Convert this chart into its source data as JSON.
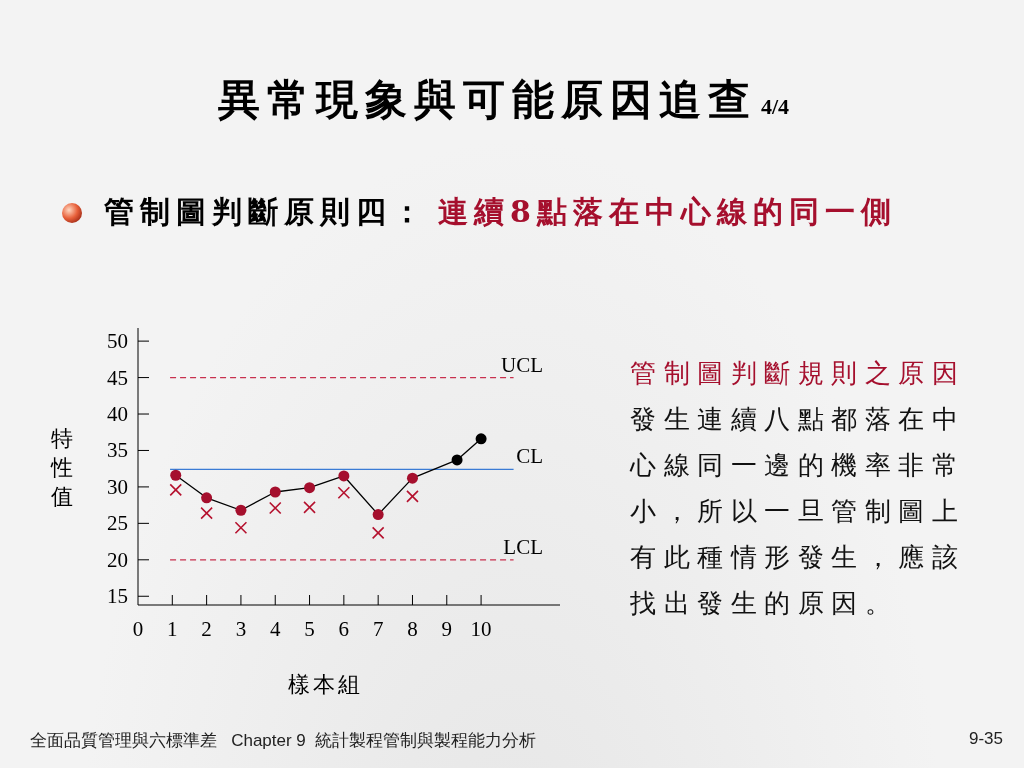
{
  "chart_data": {
    "type": "line",
    "title": "異常現象與可能原因追查",
    "subtitle": "管制圖判斷原則四：",
    "xlabel": "樣本組",
    "ylabel": "特性值",
    "series": [
      {
        "type": "line",
        "x": [
          1.1,
          2,
          3,
          4,
          5,
          6,
          7,
          8,
          9.3,
          10
        ],
        "values": [
          31.6,
          28.5,
          26.8,
          29.3,
          29.9,
          31.5,
          26.2,
          31.2,
          33.7,
          36.6
        ],
        "color": "#000000",
        "colors": [
          "#a50f2d",
          "#a50f2d",
          "#a50f2d",
          "#a50f2d",
          "#a50f2d",
          "#a50f2d",
          "#a50f2d",
          "#a50f2d",
          "#000000",
          "#000000"
        ],
        "marker": "circle",
        "line_style": "solid"
      },
      {
        "type": "scatter",
        "x": [
          1.1,
          2,
          3,
          4,
          5,
          6,
          7,
          8
        ],
        "values": [
          29.6,
          26.4,
          24.4,
          27.1,
          27.2,
          29.2,
          23.7,
          28.7
        ],
        "color": "#b5112e",
        "marker": "cross"
      }
    ],
    "xlim": [
      0,
      12.3
    ],
    "xticks": [
      0,
      1,
      2,
      3,
      4,
      5,
      6,
      7,
      8,
      9,
      10
    ],
    "ylim": [
      13.8,
      51.8
    ],
    "yticks": [
      15,
      20,
      25,
      30,
      35,
      40,
      45,
      50
    ],
    "ref_lines": [
      {
        "axis": "y",
        "value": 45,
        "label": "UCL",
        "color": "#c8304e",
        "line_style": "dashed"
      },
      {
        "axis": "y",
        "value": 32.4,
        "label": "CL",
        "color": "#3a7bd5",
        "line_style": "solid"
      },
      {
        "axis": "y",
        "value": 20,
        "label": "LCL",
        "color": "#c8304e",
        "line_style": "dashed"
      }
    ],
    "grid": false,
    "annotations": [
      "4/4",
      "連續8點落在中心線的同一側",
      "管制圖判斷規則之原因",
      "發生連續八點都落在中心線同一邊的機率非常小，所以一旦管制圖上有此種情形發生，應該找出發生的原因。",
      "全面品質管理與六標準差   Chapter 9  統計製程管制與製程能力分析",
      "9-35"
    ]
  }
}
